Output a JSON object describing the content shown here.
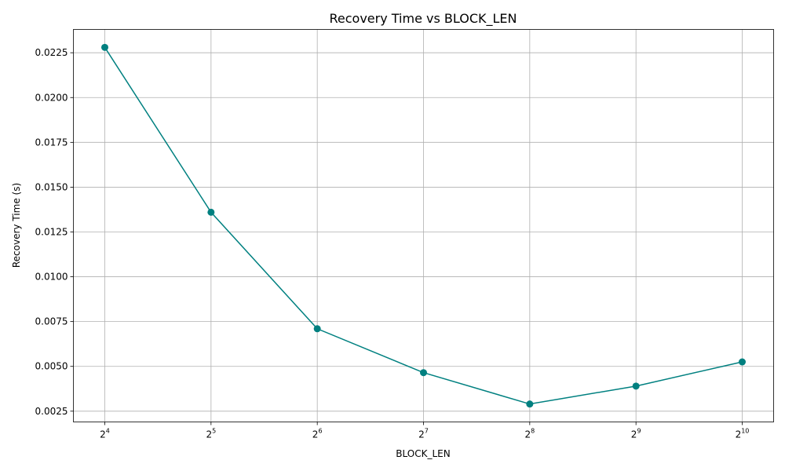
{
  "chart_data": {
    "type": "line",
    "title": "Recovery Time vs BLOCK_LEN",
    "xlabel": "BLOCK_LEN",
    "ylabel": "Recovery Time (s)",
    "x_scale": "log2",
    "x": [
      16,
      32,
      64,
      128,
      256,
      512,
      1024
    ],
    "x_tick_labels": [
      {
        "base": "2",
        "exp": "4"
      },
      {
        "base": "2",
        "exp": "5"
      },
      {
        "base": "2",
        "exp": "6"
      },
      {
        "base": "2",
        "exp": "7"
      },
      {
        "base": "2",
        "exp": "8"
      },
      {
        "base": "2",
        "exp": "9"
      },
      {
        "base": "2",
        "exp": "10"
      }
    ],
    "y_ticks": [
      "0.0025",
      "0.0050",
      "0.0075",
      "0.0100",
      "0.0125",
      "0.0150",
      "0.0175",
      "0.0200",
      "0.0225"
    ],
    "ylim": [
      0.0019,
      0.0238
    ],
    "series": [
      {
        "values": [
          0.0228,
          0.0136,
          0.0071,
          0.00465,
          0.0029,
          0.0039,
          0.00525
        ],
        "color": "#008080",
        "marker": "circle"
      }
    ],
    "grid": true,
    "legend": "none"
  }
}
